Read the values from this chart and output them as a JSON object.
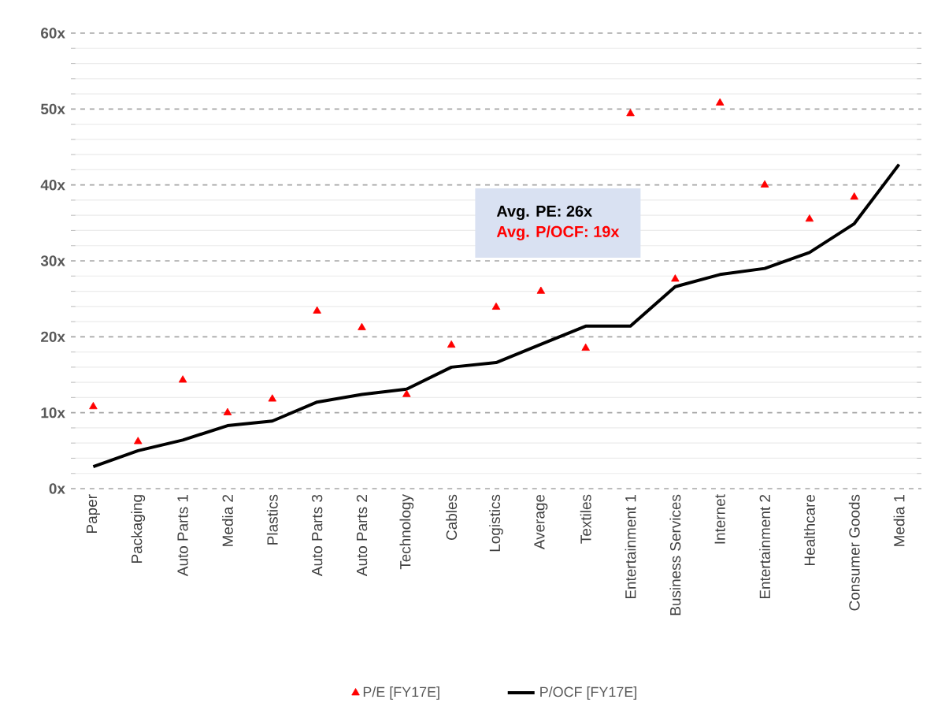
{
  "chart_data": {
    "type": "line",
    "categories": [
      "Paper",
      "Packaging",
      "Auto Parts 1",
      "Media 2",
      "Plastics",
      "Auto Parts 3",
      "Auto Parts 2",
      "Technology",
      "Cables",
      "Logistics",
      "Average",
      "Textiles",
      "Entertainment 1",
      "Business Services",
      "Internet",
      "Entertainment 2",
      "Healthcare",
      "Consumer Goods",
      "Media 1"
    ],
    "series": [
      {
        "name": "P/E [FY17E]",
        "type": "scatter",
        "marker": "triangle",
        "color": "#ff0000",
        "values": [
          10.8,
          6.2,
          14.3,
          10.0,
          11.8,
          23.4,
          21.2,
          12.4,
          18.9,
          23.9,
          26,
          18.5,
          49.4,
          27.6,
          50.8,
          40.0,
          35.5,
          38.4,
          null
        ]
      },
      {
        "name": "P/OCF [FY17E]",
        "color": "#000000",
        "values": [
          2.9,
          5.0,
          6.4,
          8.3,
          8.9,
          11.4,
          12.4,
          13.1,
          16.0,
          16.6,
          19,
          21.4,
          21.4,
          26.6,
          28.2,
          29.0,
          31.1,
          34.9,
          42.7
        ]
      }
    ],
    "ylim": [
      0,
      60
    ],
    "yticks": [
      {
        "value": 0,
        "label": "0x"
      },
      {
        "value": 10,
        "label": "10x"
      },
      {
        "value": 20,
        "label": "20x"
      },
      {
        "value": 30,
        "label": "30x"
      },
      {
        "value": 40,
        "label": "40x"
      },
      {
        "value": 50,
        "label": "50x"
      },
      {
        "value": 60,
        "label": "60x"
      }
    ],
    "grid": "y",
    "legend": "bottom",
    "annotations": [
      "Avg. PE: 26x",
      "Avg. P/OCF: 19x"
    ]
  }
}
